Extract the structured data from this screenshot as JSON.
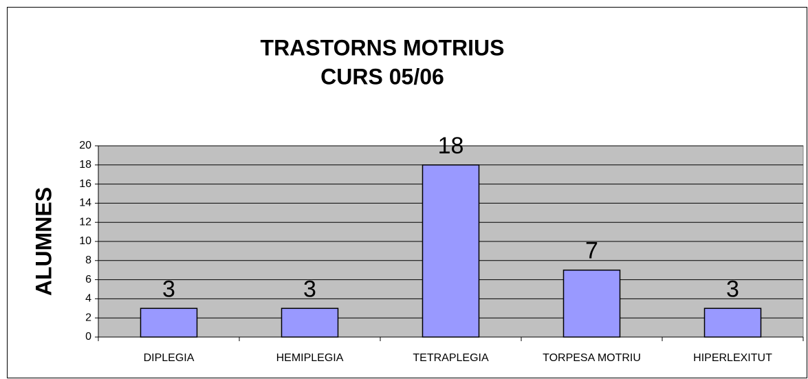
{
  "chart_data": {
    "type": "bar",
    "title": "TRASTORNS MOTRIUS",
    "subtitle": "CURS 05/06",
    "y_label": "ALUMNES",
    "categories": [
      "DIPLEGIA",
      "HEMIPLEGIA",
      "TETRAPLEGIA",
      "TORPESA MOTRIU",
      "HIPERLEXITUT"
    ],
    "values": [
      3,
      3,
      18,
      7,
      3
    ],
    "color": "#9999ff",
    "ylim": [
      0,
      20
    ],
    "yticks": [
      0,
      2,
      4,
      6,
      8,
      10,
      12,
      14,
      16,
      18,
      20
    ],
    "grid": true
  }
}
